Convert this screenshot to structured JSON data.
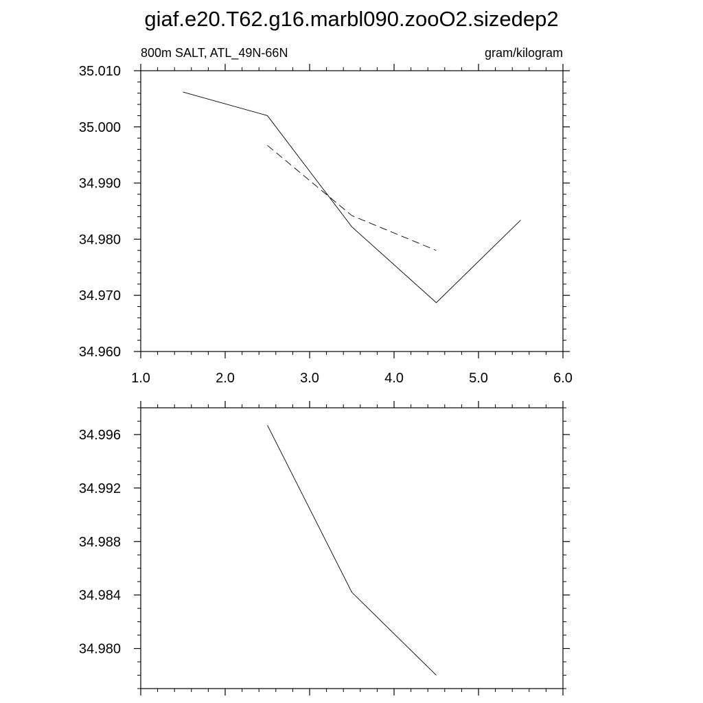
{
  "title": "giaf.e20.T62.g16.marbl090.zooO2.sizedep2",
  "chart_data": [
    {
      "type": "line",
      "subtitle_left": "800m SALT, ATL_49N-66N",
      "subtitle_right": "gram/kilogram",
      "xlim": [
        1.0,
        6.0
      ],
      "ylim": [
        34.96,
        35.01
      ],
      "x_ticks": [
        1.0,
        2.0,
        3.0,
        4.0,
        5.0,
        6.0
      ],
      "x_tick_labels": [
        "1.0",
        "2.0",
        "3.0",
        "4.0",
        "5.0",
        "6.0"
      ],
      "x_minor_step": 0.2,
      "y_ticks": [
        34.96,
        34.97,
        34.98,
        34.99,
        35.0,
        35.01
      ],
      "y_tick_labels": [
        "34.960",
        "34.970",
        "34.980",
        "34.990",
        "35.000",
        "35.010"
      ],
      "y_minor_step": 0.002,
      "series": [
        {
          "style": "solid",
          "color": "#000000",
          "x": [
            1.5,
            2.5,
            3.5,
            4.5,
            5.5
          ],
          "y": [
            35.0062,
            35.002,
            34.9822,
            34.9687,
            34.9834
          ]
        },
        {
          "style": "dashed",
          "color": "#000000",
          "x": [
            2.5,
            3.5,
            4.5
          ],
          "y": [
            34.9967,
            34.9842,
            34.978
          ]
        }
      ]
    },
    {
      "type": "line",
      "xlim": [
        1.0,
        6.0
      ],
      "ylim": [
        34.977,
        34.998
      ],
      "x_ticks": [
        1.0,
        2.0,
        3.0,
        4.0,
        5.0,
        6.0
      ],
      "x_tick_labels": [],
      "x_minor_step": 0.2,
      "y_ticks": [
        34.98,
        34.984,
        34.988,
        34.992,
        34.996
      ],
      "y_tick_labels": [
        "34.980",
        "34.984",
        "34.988",
        "34.992",
        "34.996"
      ],
      "y_minor_step": 0.001,
      "series": [
        {
          "style": "solid",
          "color": "#000000",
          "x": [
            2.5,
            3.5,
            4.5
          ],
          "y": [
            34.9967,
            34.9842,
            34.978
          ]
        }
      ]
    }
  ]
}
